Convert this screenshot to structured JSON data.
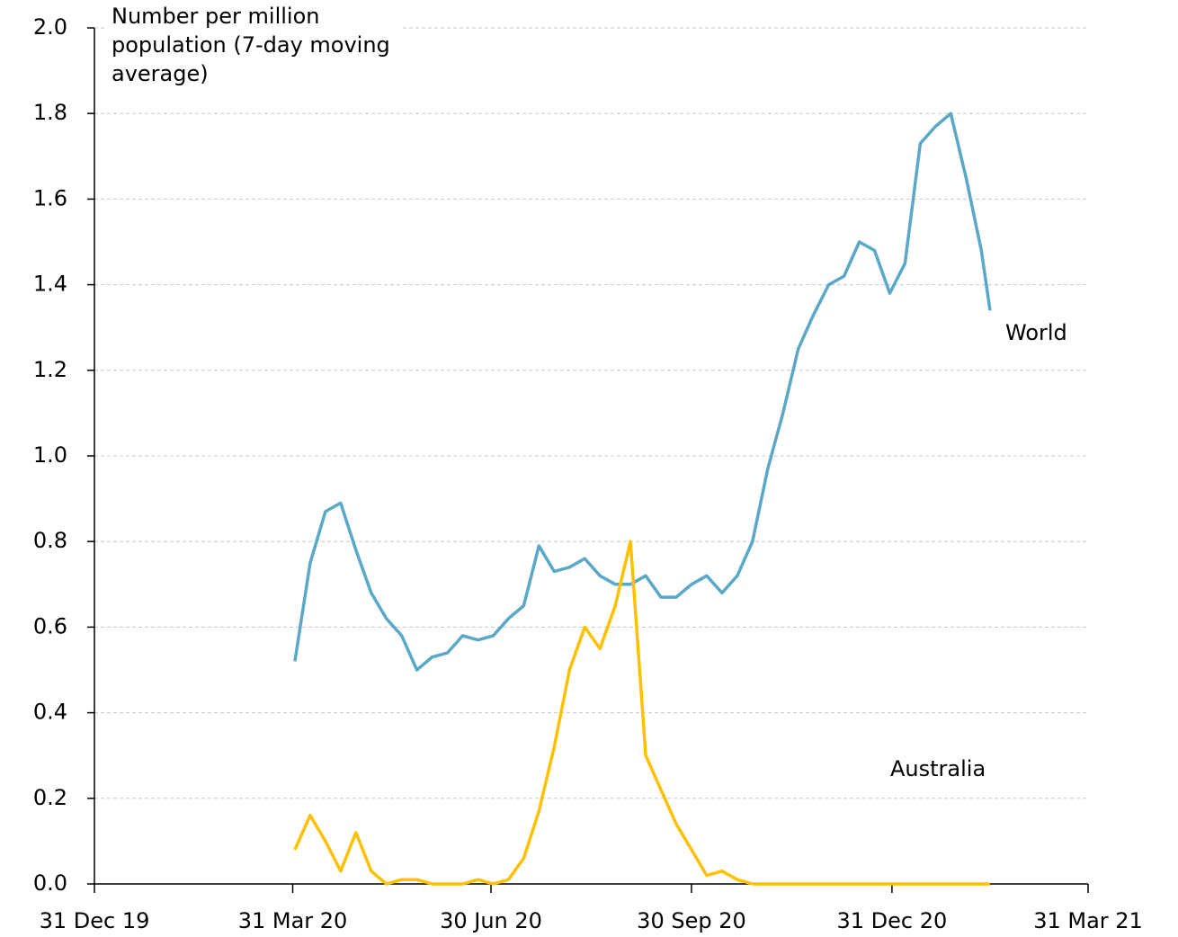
{
  "chart_data": {
    "type": "line",
    "y_axis_label": "Number per million population (7-day moving average)",
    "x": [
      "2020-04-01",
      "2020-04-08",
      "2020-04-15",
      "2020-04-22",
      "2020-04-29",
      "2020-05-06",
      "2020-05-13",
      "2020-05-20",
      "2020-05-27",
      "2020-06-03",
      "2020-06-10",
      "2020-06-17",
      "2020-06-24",
      "2020-07-01",
      "2020-07-08",
      "2020-07-15",
      "2020-07-22",
      "2020-07-29",
      "2020-08-05",
      "2020-08-12",
      "2020-08-19",
      "2020-08-26",
      "2020-09-02",
      "2020-09-09",
      "2020-09-16",
      "2020-09-23",
      "2020-09-30",
      "2020-10-07",
      "2020-10-14",
      "2020-10-21",
      "2020-10-28",
      "2020-11-04",
      "2020-11-11",
      "2020-11-18",
      "2020-11-25",
      "2020-12-02",
      "2020-12-09",
      "2020-12-16",
      "2020-12-23",
      "2020-12-30",
      "2021-01-06",
      "2021-01-13",
      "2021-01-20",
      "2021-01-27",
      "2021-02-03",
      "2021-02-10",
      "2021-02-14"
    ],
    "series": [
      {
        "name": "World",
        "color": "#5aa8c8",
        "values": [
          0.52,
          0.75,
          0.87,
          0.89,
          0.78,
          0.68,
          0.62,
          0.58,
          0.5,
          0.53,
          0.54,
          0.58,
          0.57,
          0.58,
          0.62,
          0.65,
          0.79,
          0.73,
          0.74,
          0.76,
          0.72,
          0.7,
          0.7,
          0.72,
          0.67,
          0.67,
          0.7,
          0.72,
          0.68,
          0.72,
          0.8,
          0.97,
          1.1,
          1.25,
          1.33,
          1.4,
          1.42,
          1.5,
          1.48,
          1.38,
          1.45,
          1.73,
          1.77,
          1.8,
          1.65,
          1.48,
          1.34
        ]
      },
      {
        "name": "Australia",
        "color": "#ffc000",
        "values": [
          0.08,
          0.16,
          0.1,
          0.03,
          0.12,
          0.03,
          0,
          0.01,
          0.01,
          0,
          0,
          0,
          0.01,
          0,
          0.01,
          0.06,
          0.17,
          0.32,
          0.5,
          0.6,
          0.55,
          0.65,
          0.8,
          0.3,
          0.22,
          0.14,
          0.08,
          0.02,
          0.03,
          0.01,
          0,
          0,
          0,
          0,
          0,
          0,
          0,
          0,
          0,
          0,
          0,
          0,
          0,
          0,
          0,
          0,
          0
        ]
      }
    ],
    "xlim": [
      "2019-12-31",
      "2021-03-31"
    ],
    "xticks": [
      {
        "value": "2019-12-31",
        "label": "31 Dec 19"
      },
      {
        "value": "2020-03-31",
        "label": "31 Mar 20"
      },
      {
        "value": "2020-06-30",
        "label": "30 Jun 20"
      },
      {
        "value": "2020-09-30",
        "label": "30 Sep 20"
      },
      {
        "value": "2020-12-31",
        "label": "31 Dec 20"
      },
      {
        "value": "2021-03-31",
        "label": "31 Mar 21"
      }
    ],
    "ylim": [
      0,
      2
    ],
    "yticks": [
      {
        "value": 0,
        "label": "0.0"
      },
      {
        "value": 0.2,
        "label": "0.2"
      },
      {
        "value": 0.4,
        "label": "0.4"
      },
      {
        "value": 0.6,
        "label": "0.6"
      },
      {
        "value": 0.8,
        "label": "0.8"
      },
      {
        "value": 1,
        "label": "1.0"
      },
      {
        "value": 1.2,
        "label": "1.2"
      },
      {
        "value": 1.4,
        "label": "1.4"
      },
      {
        "value": 1.6,
        "label": "1.6"
      },
      {
        "value": 1.8,
        "label": "1.8"
      },
      {
        "value": 2,
        "label": "2.0"
      }
    ],
    "grid": true
  }
}
